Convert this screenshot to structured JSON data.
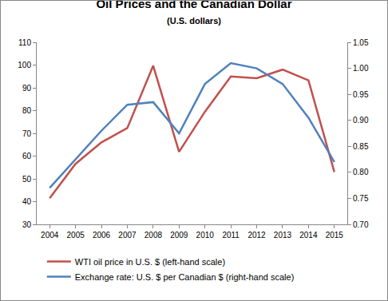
{
  "chart_data": {
    "type": "line",
    "title": "Oil Prices and the Canadian Dollar",
    "subtitle": "(U.S. dollars)",
    "categories": [
      "2004",
      "2005",
      "2006",
      "2007",
      "2008",
      "2009",
      "2010",
      "2011",
      "2012",
      "2013",
      "2014",
      "2015"
    ],
    "series": [
      {
        "name": "WTI oil price in U.S. $ (left-hand scale)",
        "color": "#c0504d",
        "values": [
          41.5,
          56.6,
          66.0,
          72.3,
          99.7,
          61.9,
          79.5,
          95.0,
          94.2,
          98.0,
          93.3,
          53.0
        ]
      },
      {
        "name": "Exchange rate: U.S. $ per Canadian $ (right-hand scale)",
        "color": "#4f81bd",
        "axis": "y2",
        "values": [
          0.77,
          0.825,
          0.88,
          0.93,
          0.935,
          0.875,
          0.97,
          1.01,
          1.0,
          0.97,
          0.905,
          0.82
        ]
      }
    ],
    "ylim": [
      30,
      110
    ],
    "yticks": [
      30,
      40,
      50,
      60,
      70,
      80,
      90,
      100,
      110
    ],
    "y2lim": [
      0.7,
      1.05
    ],
    "y2ticks": [
      {
        "value": 0.7,
        "label": "0.70"
      },
      0.75,
      {
        "value": 0.8,
        "label": "0.80"
      },
      0.85,
      {
        "value": 0.9,
        "label": "0.90"
      },
      0.95,
      {
        "value": 1.0,
        "label": "1.00"
      },
      1.05
    ],
    "grid": false,
    "legend": "bottom"
  }
}
